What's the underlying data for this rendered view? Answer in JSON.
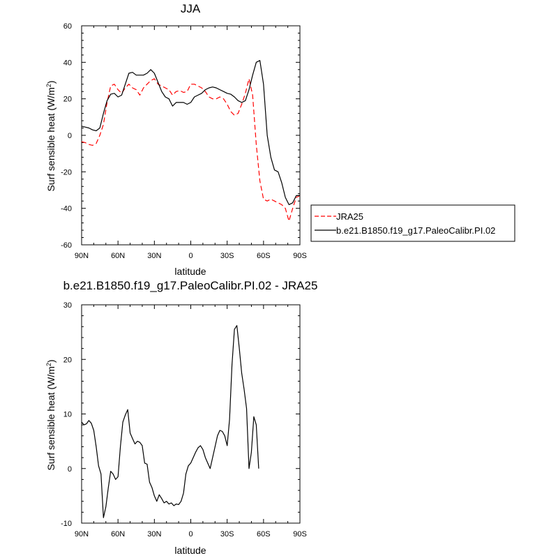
{
  "chart_data": [
    {
      "type": "line",
      "title": "JJA",
      "xlabel": "latitude",
      "ylabel_main": "Surf sensible heat (W/m",
      "ylabel_sup": "2",
      "ylabel_close": ")",
      "xlim": [
        90,
        -90
      ],
      "ylim": [
        -60,
        60
      ],
      "xticks": [
        {
          "v": 90,
          "label": "90N"
        },
        {
          "v": 60,
          "label": "60N"
        },
        {
          "v": 30,
          "label": "30N"
        },
        {
          "v": 0,
          "label": "0"
        },
        {
          "v": -30,
          "label": "30S"
        },
        {
          "v": -60,
          "label": "60S"
        },
        {
          "v": -90,
          "label": "90S"
        }
      ],
      "yticks": [
        {
          "v": 60,
          "label": "60"
        },
        {
          "v": 40,
          "label": "40"
        },
        {
          "v": 20,
          "label": "20"
        },
        {
          "v": 0,
          "label": "0"
        },
        {
          "v": -20,
          "label": "-20"
        },
        {
          "v": -40,
          "label": "-40"
        },
        {
          "v": -60,
          "label": "-60"
        }
      ],
      "legend": {
        "placement": "right",
        "entries": [
          "JRA25",
          "b.e21.B1850.f19_g17.PaleoCalibr.PI.02"
        ]
      },
      "series": [
        {
          "name": "JRA25",
          "color": "#ff0000",
          "dash": true,
          "x": [
            90,
            87,
            84,
            81,
            78,
            75,
            72,
            69,
            66,
            63,
            60,
            57,
            54,
            51,
            48,
            45,
            42,
            39,
            36,
            33,
            30,
            27,
            24,
            21,
            18,
            15,
            12,
            9,
            6,
            3,
            0,
            -3,
            -6,
            -9,
            -12,
            -15,
            -18,
            -21,
            -24,
            -27,
            -30,
            -33,
            -36,
            -39,
            -42,
            -45,
            -48,
            -51,
            -54,
            -57,
            -60,
            -63,
            -66,
            -69,
            -72,
            -75,
            -78,
            -81,
            -84,
            -87,
            -90
          ],
          "values": [
            -3.5,
            -4,
            -5,
            -5.5,
            -4.5,
            0,
            6,
            18,
            27,
            28,
            25,
            23,
            26,
            28,
            26,
            25,
            22,
            26,
            28,
            30,
            31,
            28,
            27,
            26,
            25,
            22,
            24,
            24.5,
            23.5,
            24,
            28,
            28,
            27,
            26,
            24,
            21,
            20,
            20,
            21,
            20,
            17,
            13,
            11,
            12,
            17,
            23,
            31,
            22,
            -5,
            -25,
            -35,
            -36,
            -35,
            -36,
            -37,
            -38,
            -40,
            -47,
            -40,
            -34,
            -33
          ],
          "points": [
            [
              90,
              -3.5
            ],
            [
              87,
              -4
            ],
            [
              84,
              -5
            ],
            [
              81,
              -5.5
            ],
            [
              78,
              -4.5
            ],
            [
              75,
              0
            ],
            [
              72,
              6
            ],
            [
              69,
              18
            ],
            [
              66,
              27
            ],
            [
              63,
              28
            ],
            [
              60,
              25
            ],
            [
              57,
              23
            ],
            [
              54,
              26
            ],
            [
              51,
              28
            ],
            [
              48,
              26
            ],
            [
              45,
              25
            ],
            [
              42,
              22
            ],
            [
              39,
              26
            ],
            [
              36,
              28
            ],
            [
              33,
              30
            ],
            [
              30,
              31
            ],
            [
              27,
              28
            ],
            [
              24,
              27
            ],
            [
              21,
              26
            ],
            [
              18,
              25
            ],
            [
              15,
              22
            ],
            [
              12,
              24
            ],
            [
              9,
              24.5
            ],
            [
              6,
              23.5
            ],
            [
              3,
              24
            ],
            [
              0,
              28
            ],
            [
              -3,
              28
            ],
            [
              -6,
              27
            ],
            [
              -9,
              26
            ],
            [
              -12,
              24
            ],
            [
              -15,
              21
            ],
            [
              -18,
              20
            ],
            [
              -21,
              20
            ],
            [
              -24,
              21
            ],
            [
              -27,
              20
            ],
            [
              -30,
              17
            ],
            [
              -33,
              13
            ],
            [
              -36,
              11
            ],
            [
              -39,
              12
            ],
            [
              -42,
              17
            ],
            [
              -45,
              23
            ],
            [
              -48,
              31
            ],
            [
              -51,
              22
            ],
            [
              -54,
              -5
            ],
            [
              -57,
              -25
            ],
            [
              -60,
              -35
            ],
            [
              -63,
              -36
            ],
            [
              -66,
              -35
            ],
            [
              -69,
              -36
            ],
            [
              -72,
              -37
            ],
            [
              -75,
              -38
            ],
            [
              -78,
              -40
            ],
            [
              -81,
              -47
            ],
            [
              -84,
              -40
            ],
            [
              -87,
              -34
            ],
            [
              -90,
              -33
            ]
          ]
        },
        {
          "name": "b.e21.B1850.f19_g17.PaleoCalibr.PI.02",
          "color": "#000000",
          "dash": false,
          "points": [
            [
              90,
              5
            ],
            [
              87,
              4.5
            ],
            [
              84,
              4
            ],
            [
              81,
              3
            ],
            [
              78,
              2.5
            ],
            [
              75,
              4
            ],
            [
              72,
              12
            ],
            [
              69,
              19
            ],
            [
              66,
              22.5
            ],
            [
              63,
              23
            ],
            [
              60,
              21
            ],
            [
              57,
              22
            ],
            [
              54,
              28
            ],
            [
              51,
              34
            ],
            [
              48,
              34.5
            ],
            [
              45,
              33
            ],
            [
              42,
              33
            ],
            [
              39,
              33
            ],
            [
              36,
              34
            ],
            [
              33,
              36
            ],
            [
              30,
              34
            ],
            [
              27,
              29
            ],
            [
              24,
              24
            ],
            [
              21,
              21
            ],
            [
              18,
              20
            ],
            [
              15,
              16
            ],
            [
              12,
              18
            ],
            [
              9,
              18
            ],
            [
              6,
              18
            ],
            [
              3,
              17
            ],
            [
              0,
              18
            ],
            [
              -3,
              21
            ],
            [
              -6,
              22
            ],
            [
              -9,
              23
            ],
            [
              -12,
              25
            ],
            [
              -15,
              26
            ],
            [
              -18,
              26.5
            ],
            [
              -21,
              26
            ],
            [
              -24,
              25
            ],
            [
              -27,
              24
            ],
            [
              -30,
              23
            ],
            [
              -33,
              22.5
            ],
            [
              -36,
              21
            ],
            [
              -39,
              19
            ],
            [
              -42,
              18
            ],
            [
              -45,
              19
            ],
            [
              -48,
              25
            ],
            [
              -51,
              33
            ],
            [
              -54,
              40
            ],
            [
              -57,
              41
            ],
            [
              -60,
              28
            ],
            [
              -63,
              0
            ],
            [
              -66,
              -12
            ],
            [
              -69,
              -19
            ],
            [
              -72,
              -20
            ],
            [
              -75,
              -26
            ],
            [
              -78,
              -34
            ],
            [
              -81,
              -38
            ],
            [
              -84,
              -37
            ],
            [
              -87,
              -33
            ],
            [
              -90,
              -33
            ]
          ]
        }
      ]
    },
    {
      "type": "line",
      "title": "b.e21.B1850.f19_g17.PaleoCalibr.PI.02 - JRA25",
      "xlabel": "latitude",
      "ylabel_main": "Surf sensible heat (W/m",
      "ylabel_sup": "2",
      "ylabel_close": ")",
      "xlim": [
        90,
        -90
      ],
      "ylim": [
        -10,
        30
      ],
      "xticks": [
        {
          "v": 90,
          "label": "90N"
        },
        {
          "v": 60,
          "label": "60N"
        },
        {
          "v": 30,
          "label": "30N"
        },
        {
          "v": 0,
          "label": "0"
        },
        {
          "v": -30,
          "label": "30S"
        },
        {
          "v": -60,
          "label": "60S"
        },
        {
          "v": -90,
          "label": "90S"
        }
      ],
      "yticks": [
        {
          "v": 30,
          "label": "30"
        },
        {
          "v": 20,
          "label": "20"
        },
        {
          "v": 10,
          "label": "10"
        },
        {
          "v": 0,
          "label": "0"
        },
        {
          "v": -10,
          "label": "-10"
        }
      ],
      "series": [
        {
          "color": "#000000",
          "dash": false,
          "points": [
            [
              90,
              8.5
            ],
            [
              88,
              8
            ],
            [
              86,
              8.2
            ],
            [
              84,
              8.8
            ],
            [
              82,
              8.3
            ],
            [
              80,
              7
            ],
            [
              78,
              4
            ],
            [
              76,
              0.5
            ],
            [
              74,
              -1
            ],
            [
              72,
              -9
            ],
            [
              70,
              -7
            ],
            [
              68,
              -3.5
            ],
            [
              66,
              -0.5
            ],
            [
              64,
              -1
            ],
            [
              62,
              -2
            ],
            [
              60,
              -1.5
            ],
            [
              58,
              4
            ],
            [
              56,
              8.5
            ],
            [
              54,
              9.8
            ],
            [
              52,
              10.8
            ],
            [
              50,
              6.5
            ],
            [
              48,
              5.5
            ],
            [
              46,
              4.5
            ],
            [
              44,
              5
            ],
            [
              42,
              4.8
            ],
            [
              40,
              4.2
            ],
            [
              38,
              1
            ],
            [
              36,
              0.8
            ],
            [
              34,
              -2.5
            ],
            [
              32,
              -3.5
            ],
            [
              30,
              -5
            ],
            [
              28,
              -6
            ],
            [
              26,
              -4.8
            ],
            [
              24,
              -5.5
            ],
            [
              22,
              -6.3
            ],
            [
              20,
              -6
            ],
            [
              18,
              -6.5
            ],
            [
              16,
              -6.3
            ],
            [
              14,
              -6.8
            ],
            [
              12,
              -6.5
            ],
            [
              10,
              -6.6
            ],
            [
              8,
              -6
            ],
            [
              6,
              -4.5
            ],
            [
              4,
              -1
            ],
            [
              2,
              0.5
            ],
            [
              0,
              1
            ],
            [
              -2,
              2
            ],
            [
              -4,
              3
            ],
            [
              -6,
              3.8
            ],
            [
              -8,
              4.2
            ],
            [
              -10,
              3.5
            ],
            [
              -12,
              2
            ],
            [
              -14,
              1
            ],
            [
              -16,
              0
            ],
            [
              -18,
              2
            ],
            [
              -20,
              4
            ],
            [
              -22,
              6
            ],
            [
              -24,
              7
            ],
            [
              -26,
              6.8
            ],
            [
              -28,
              6
            ],
            [
              -30,
              4.2
            ],
            [
              -32,
              9
            ],
            [
              -34,
              19
            ],
            [
              -36,
              25.5
            ],
            [
              -38,
              26.2
            ],
            [
              -40,
              22
            ],
            [
              -42,
              17.5
            ],
            [
              -44,
              14.5
            ],
            [
              -46,
              11
            ],
            [
              -48,
              0
            ],
            [
              -50,
              3
            ],
            [
              -52,
              9.5
            ],
            [
              -54,
              8
            ],
            [
              -56,
              0
            ]
          ]
        }
      ]
    }
  ]
}
